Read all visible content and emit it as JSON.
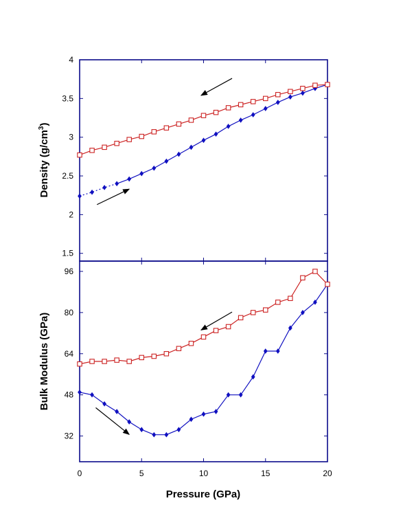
{
  "chart_data": {
    "type": "line",
    "xlabel": "Pressure (GPa)",
    "xlim": [
      0,
      20
    ],
    "x_ticks": [
      "0",
      "5",
      "10",
      "15",
      "20"
    ],
    "colors": {
      "loading": "#1010c0",
      "unloading": "#cc2222",
      "frame": "#0a0a8a"
    },
    "panels": [
      {
        "ylabel_main": "Density (g/cm",
        "ylabel_sup": "3",
        "ylabel_end": ")",
        "ylim": [
          1.4,
          4.0
        ],
        "y_ticks": [
          "1.5",
          "2",
          "2.5",
          "3",
          "3.5",
          "4"
        ],
        "arrows": [
          {
            "direction": "unloading",
            "from": [
              12.3,
              3.76
            ],
            "to": [
              9.8,
              3.54
            ]
          },
          {
            "direction": "loading",
            "from": [
              1.4,
              2.13
            ],
            "to": [
              4.0,
              2.33
            ]
          }
        ],
        "series": [
          {
            "marker": "diamond",
            "color": "#1010c0",
            "dashed_until_x": 3,
            "x": [
              0,
              1,
              2,
              3,
              4,
              5,
              6,
              7,
              8,
              9,
              10,
              11,
              12,
              13,
              14,
              15,
              16,
              17,
              18,
              19,
              20
            ],
            "y": [
              2.24,
              2.29,
              2.35,
              2.4,
              2.46,
              2.53,
              2.6,
              2.69,
              2.78,
              2.87,
              2.96,
              3.04,
              3.14,
              3.22,
              3.29,
              3.37,
              3.45,
              3.52,
              3.57,
              3.63,
              3.68
            ]
          },
          {
            "marker": "square",
            "color": "#cc2222",
            "x": [
              0,
              1,
              2,
              3,
              4,
              5,
              6,
              7,
              8,
              9,
              10,
              11,
              12,
              13,
              14,
              15,
              16,
              17,
              18,
              19,
              20
            ],
            "y": [
              2.77,
              2.83,
              2.87,
              2.92,
              2.97,
              3.01,
              3.07,
              3.12,
              3.17,
              3.22,
              3.28,
              3.32,
              3.38,
              3.42,
              3.46,
              3.5,
              3.55,
              3.59,
              3.63,
              3.67,
              3.68
            ]
          }
        ]
      },
      {
        "ylabel_main": "Bulk Modulus (GPa)",
        "ylim": [
          22,
          100
        ],
        "y_ticks": [
          "32",
          "48",
          "64",
          "80",
          "96"
        ],
        "arrows": [
          {
            "direction": "unloading",
            "from": [
              12.3,
              80.2
            ],
            "to": [
              9.8,
              73.2
            ]
          },
          {
            "direction": "loading",
            "from": [
              1.3,
              43.0
            ],
            "to": [
              4.0,
              32.6
            ]
          }
        ],
        "series": [
          {
            "marker": "diamond",
            "color": "#1010c0",
            "x": [
              0,
              1,
              2,
              3,
              4,
              5,
              6,
              7,
              8,
              9,
              10,
              11,
              12,
              13,
              14,
              15,
              16,
              17,
              18,
              19,
              20
            ],
            "y": [
              49,
              48,
              44.5,
              41.5,
              37.5,
              34.5,
              32.5,
              32.5,
              34.5,
              38.5,
              40.5,
              41.5,
              48,
              48,
              55,
              65,
              65,
              74,
              80,
              84,
              91
            ]
          },
          {
            "marker": "square",
            "color": "#cc2222",
            "x": [
              0,
              1,
              2,
              3,
              4,
              5,
              6,
              7,
              8,
              9,
              10,
              11,
              12,
              13,
              14,
              15,
              16,
              17,
              18,
              19,
              20
            ],
            "y": [
              60,
              61,
              61,
              61.5,
              61,
              62.5,
              63,
              64,
              66,
              68,
              70.5,
              73,
              74.5,
              78,
              80,
              81,
              84,
              85.5,
              93.5,
              96,
              91
            ]
          }
        ]
      }
    ]
  }
}
